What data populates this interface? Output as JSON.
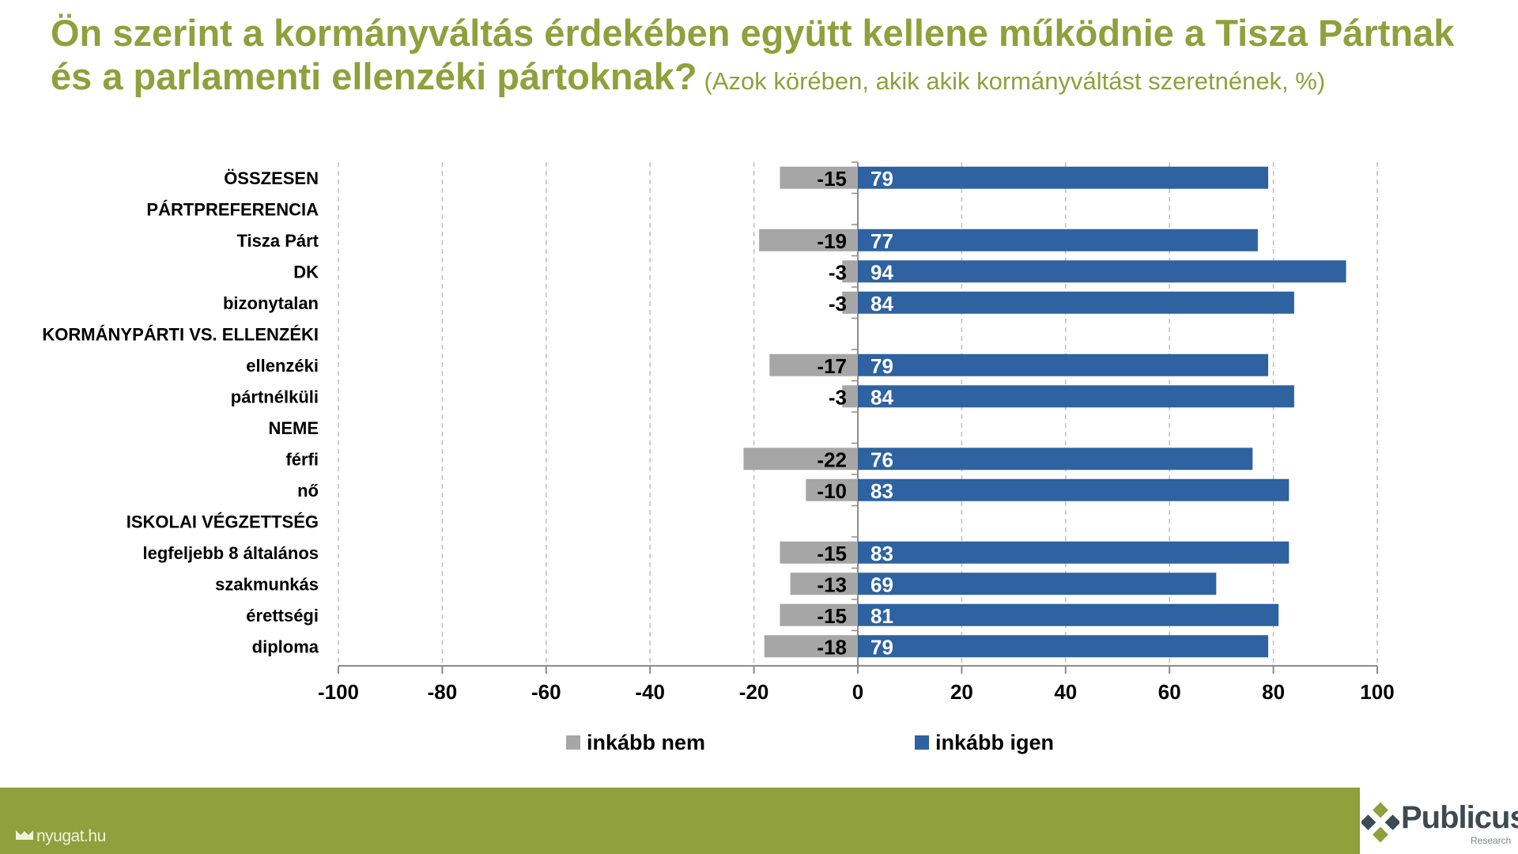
{
  "title": {
    "main": "Ön szerint a kormányváltás érdekében együtt kellene működnie a Tisza Pártnak és a parlamenti ellenzéki pártoknak?",
    "subtitle": "(Azok körében, akik akik kormányváltást szeretnének, %)"
  },
  "chart_data": {
    "type": "bar",
    "orientation": "horizontal",
    "stacked": "diverging",
    "categories": [
      "ÖSSZESEN",
      "PÁRTPREFERENCIA",
      "Tisza Párt",
      "DK",
      "bizonytalan",
      "KORMÁNYPÁRTI VS. ELLENZÉKI",
      "ellenzéki",
      "pártnélküli",
      "NEME",
      "férfi",
      "nő",
      "ISKOLAI VÉGZETTSÉG",
      "legfeljebb 8 általános",
      "szakmunkás",
      "érettségi",
      "diploma"
    ],
    "series": [
      {
        "name": "inkább nem",
        "color": "#a6a6a6",
        "values": [
          -15,
          null,
          -19,
          -3,
          -3,
          null,
          -17,
          -3,
          null,
          -22,
          -10,
          null,
          -15,
          -13,
          -15,
          -18
        ]
      },
      {
        "name": "inkább igen",
        "color": "#2e62a0",
        "values": [
          79,
          null,
          77,
          94,
          84,
          null,
          79,
          84,
          null,
          76,
          83,
          null,
          83,
          69,
          81,
          79
        ]
      }
    ],
    "xlim": [
      -100,
      100
    ],
    "xticks": [
      -100,
      -80,
      -60,
      -40,
      -20,
      0,
      20,
      40,
      60,
      80,
      100
    ],
    "grid": "vertical dashed",
    "legend": "bottom",
    "xlabel": "",
    "ylabel": ""
  },
  "footer": {
    "source": "nyugat.hu",
    "logo": "Publicus",
    "logo_sub": "Research",
    "color": "#8fa03c"
  }
}
